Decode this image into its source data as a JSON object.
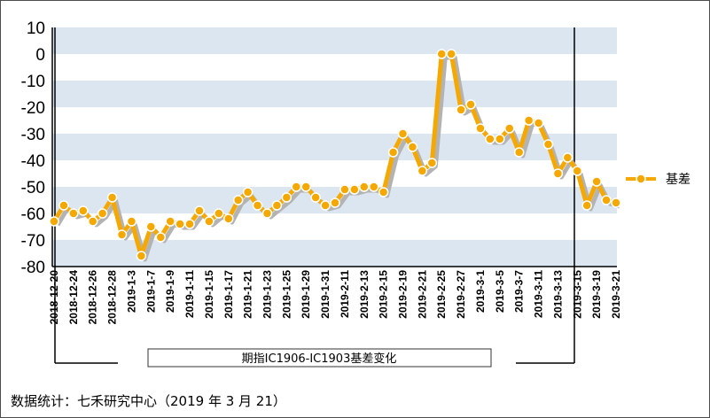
{
  "chart_data": {
    "type": "line",
    "title": "",
    "xlabel": "",
    "ylabel": "",
    "ylim": [
      -80,
      10
    ],
    "yticks": [
      10,
      0,
      -10,
      -20,
      -30,
      -40,
      -50,
      -60,
      -70,
      -80
    ],
    "x_tick_labels": [
      "2018-12-20",
      "2018-12-24",
      "2018-12-26",
      "2018-12-28",
      "2019-1-3",
      "2019-1-7",
      "2019-1-9",
      "2019-1-11",
      "2019-1-15",
      "2019-1-17",
      "2019-1-21",
      "2019-1-23",
      "2019-1-25",
      "2019-1-29",
      "2019-1-31",
      "2019-2-11",
      "2019-2-13",
      "2019-2-15",
      "2019-2-19",
      "2019-2-21",
      "2019-2-25",
      "2019-2-27",
      "2019-3-1",
      "2019-3-5",
      "2019-3-7",
      "2019-3-11",
      "2019-3-13",
      "2019-3-15",
      "2019-3-19",
      "2019-3-21"
    ],
    "x_label_every": 2,
    "series": [
      {
        "name": "基差",
        "color": "#f5a800",
        "shadow_color": "#b3b3b3",
        "values": [
          -63,
          -57,
          -60,
          -59,
          -63,
          -60,
          -54,
          -68,
          -63,
          -76,
          -65,
          -69,
          -63,
          -64,
          -64,
          -59,
          -63,
          -60,
          -62,
          -55,
          -52,
          -57,
          -60,
          -57,
          -54,
          -50,
          -50,
          -54,
          -57,
          -56,
          -51,
          -51,
          -50,
          -50,
          -52,
          -37,
          -30,
          -35,
          -44,
          -41,
          0,
          0,
          -21,
          -19,
          -28,
          -32,
          -32,
          -28,
          -37,
          -25,
          -26,
          -34,
          -45,
          -39,
          -44,
          -57,
          -48,
          -55,
          -56
        ]
      }
    ],
    "band_color": "#dce6f1",
    "legend": {
      "label": "基差",
      "position": "right"
    },
    "caption": "期指IC1906-IC1903基差变化"
  },
  "source_note": "数据统计：七禾研究中心（2019 年 3 月 21）"
}
